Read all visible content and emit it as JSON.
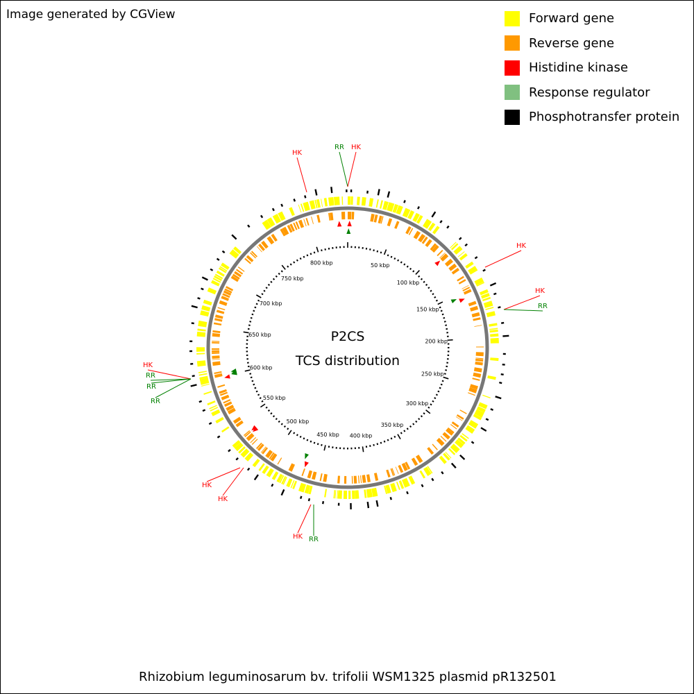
{
  "credit": "Image generated by CGView",
  "legend": [
    {
      "label": "Forward gene",
      "color": "#ffff00"
    },
    {
      "label": "Reverse gene",
      "color": "#ff9900"
    },
    {
      "label": "Histidine kinase",
      "color": "#ff0000"
    },
    {
      "label": "Response regulator",
      "color": "#80c080"
    },
    {
      "label": "Phosphotransfer protein",
      "color": "#000000"
    }
  ],
  "map": {
    "title_line1": "P2CS",
    "title_line2": "TCS distribution",
    "sequence_length_kbp": 840,
    "tick_labels": [
      "50 kbp",
      "100 kbp",
      "150 kbp",
      "200 kbp",
      "250 kbp",
      "300 kbp",
      "350 kbp",
      "400 kbp",
      "450 kbp",
      "500 kbp",
      "550 kbp",
      "600 kbp",
      "650 kbp",
      "700 kbp",
      "750 kbp",
      "800 kbp"
    ],
    "colors": {
      "hk_label": "#ff0000",
      "rr_label": "#008000",
      "backbone": "#777777"
    },
    "tcs_features": [
      {
        "label": "HK",
        "position_kbp": 831
      },
      {
        "label": "RR",
        "position_kbp": 1
      },
      {
        "label": "HK",
        "position_kbp": 2
      },
      {
        "label": "HK",
        "position_kbp": 109
      },
      {
        "label": "HK",
        "position_kbp": 157
      },
      {
        "label": "RR",
        "position_kbp": 154
      },
      {
        "label": "HK",
        "position_kbp": 598
      },
      {
        "label": "RR",
        "position_kbp": 600
      },
      {
        "label": "RR",
        "position_kbp": 601
      },
      {
        "label": "RR",
        "position_kbp": 603
      },
      {
        "label": "HK",
        "position_kbp": 535
      },
      {
        "label": "HK",
        "position_kbp": 533
      },
      {
        "label": "HK",
        "position_kbp": 466
      },
      {
        "label": "RR",
        "position_kbp": 469
      }
    ]
  },
  "caption": "Rhizobium leguminosarum bv. trifolii WSM1325 plasmid pR132501"
}
